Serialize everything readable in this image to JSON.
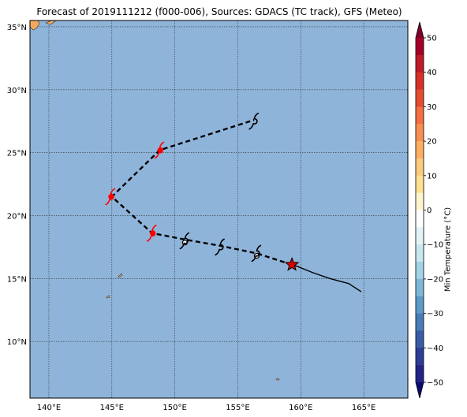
{
  "title": "Forecast of 2019111212 (f000-006), Sources: GDACS (TC track), GFS (Meteo)",
  "map": {
    "lon_range": [
      138.5,
      168.5
    ],
    "lat_range": [
      5.5,
      35.5
    ],
    "lon_ticks": [
      {
        "value": 140,
        "label": "140°E"
      },
      {
        "value": 145,
        "label": "145°E"
      },
      {
        "value": 150,
        "label": "150°E"
      },
      {
        "value": 155,
        "label": "155°E"
      },
      {
        "value": 160,
        "label": "160°E"
      },
      {
        "value": 165,
        "label": "165°E"
      }
    ],
    "lat_ticks": [
      {
        "value": 10,
        "label": "10°N"
      },
      {
        "value": 15,
        "label": "15°N"
      },
      {
        "value": 20,
        "label": "20°N"
      },
      {
        "value": 25,
        "label": "25°N"
      },
      {
        "value": 30,
        "label": "30°N"
      },
      {
        "value": 35,
        "label": "35°N"
      }
    ],
    "ocean_color": "#8fb4d9",
    "land_color": "#f5a95c",
    "grid": true
  },
  "track": {
    "past": [
      [
        164.8,
        13.95
      ],
      [
        163.8,
        14.6
      ],
      [
        162.3,
        15.0
      ],
      [
        161.0,
        15.45
      ],
      [
        159.5,
        16.05
      ]
    ],
    "forecast": [
      [
        159.3,
        16.1
      ],
      [
        156.5,
        17.0
      ],
      [
        153.6,
        17.6
      ],
      [
        150.8,
        18.1
      ],
      [
        148.2,
        18.6
      ],
      [
        145.0,
        21.5
      ],
      [
        148.8,
        25.2
      ],
      [
        156.3,
        27.6
      ]
    ],
    "current_position": [
      159.3,
      16.1
    ],
    "symbols": [
      {
        "lon": 156.5,
        "lat": 17.0,
        "color": "#000000"
      },
      {
        "lon": 153.6,
        "lat": 17.5,
        "color": "#000000"
      },
      {
        "lon": 150.8,
        "lat": 18.0,
        "color": "#000000"
      },
      {
        "lon": 148.2,
        "lat": 18.6,
        "color": "#ff0000"
      },
      {
        "lon": 144.9,
        "lat": 21.5,
        "color": "#ff0000"
      },
      {
        "lon": 148.8,
        "lat": 25.2,
        "color": "#ff0000"
      },
      {
        "lon": 156.3,
        "lat": 27.5,
        "color": "#000000"
      }
    ],
    "open_circles": [
      [
        156.5,
        16.8
      ],
      [
        150.8,
        17.85
      ]
    ]
  },
  "colorbar": {
    "label": "Min Temperature (°C)",
    "ticks": [
      50,
      40,
      30,
      20,
      10,
      0,
      -10,
      -20,
      -30,
      -40,
      -50
    ],
    "range": [
      -55,
      55
    ],
    "bands": [
      {
        "from": 50,
        "to": 55,
        "color": "#7f0027"
      },
      {
        "from": 45,
        "to": 50,
        "color": "#a50026"
      },
      {
        "from": 40,
        "to": 45,
        "color": "#be1c28"
      },
      {
        "from": 35,
        "to": 40,
        "color": "#d73027"
      },
      {
        "from": 30,
        "to": 35,
        "color": "#e34c31"
      },
      {
        "from": 25,
        "to": 30,
        "color": "#f46d43"
      },
      {
        "from": 20,
        "to": 25,
        "color": "#f98e52"
      },
      {
        "from": 15,
        "to": 20,
        "color": "#fdae61"
      },
      {
        "from": 10,
        "to": 15,
        "color": "#fdcb7f"
      },
      {
        "from": 5,
        "to": 10,
        "color": "#fee090"
      },
      {
        "from": 0,
        "to": 5,
        "color": "#fff5cd"
      },
      {
        "from": -5,
        "to": 0,
        "color": "#ffffff"
      },
      {
        "from": -10,
        "to": -5,
        "color": "#e4f3f6"
      },
      {
        "from": -15,
        "to": -10,
        "color": "#c8e7ef"
      },
      {
        "from": -20,
        "to": -15,
        "color": "#a4d3e6"
      },
      {
        "from": -25,
        "to": -20,
        "color": "#7fb8d7"
      },
      {
        "from": -30,
        "to": -25,
        "color": "#5f9bc8"
      },
      {
        "from": -35,
        "to": -30,
        "color": "#4a7cb8"
      },
      {
        "from": -40,
        "to": -35,
        "color": "#3a5ca6"
      },
      {
        "from": -45,
        "to": -40,
        "color": "#2f3d96"
      },
      {
        "from": -50,
        "to": -45,
        "color": "#232388"
      },
      {
        "from": -55,
        "to": -50,
        "color": "#0a0a73"
      }
    ]
  }
}
